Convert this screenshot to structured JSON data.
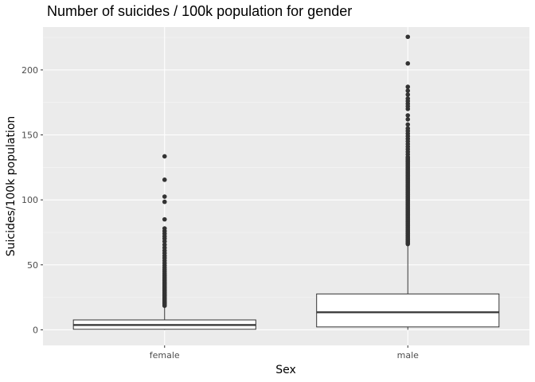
{
  "chart_data": {
    "type": "boxplot",
    "title": "Number of suicides / 100k population for gender",
    "xlabel": "Sex",
    "ylabel": "Suicides/100k population",
    "ylim": [
      -12,
      233
    ],
    "yticks": [
      0,
      50,
      100,
      150,
      200
    ],
    "grid": true,
    "colors": {
      "panel": "#ebebeb",
      "grid_major": "#ffffff",
      "grid_minor": "#f5f5f5",
      "box_fill": "#ffffff",
      "box_line": "#333333",
      "outlier": "#333333",
      "tick_text": "#4d4d4d"
    },
    "categories": [
      "female",
      "male"
    ],
    "boxes": [
      {
        "category": "female",
        "whisker_low": 0,
        "q1": 0.4,
        "median": 3.7,
        "q3": 7.6,
        "whisker_high": 18.2,
        "outliers": [
          18.5,
          19.2,
          20.0,
          20.8,
          21.5,
          22.3,
          23.0,
          23.8,
          24.6,
          25.4,
          26.2,
          27.1,
          28.0,
          28.9,
          29.8,
          30.7,
          31.6,
          32.6,
          33.6,
          34.6,
          35.7,
          36.8,
          38.0,
          39.2,
          40.5,
          41.8,
          43.2,
          44.7,
          46.2,
          47.8,
          49.5,
          51.3,
          53.2,
          55.2,
          57.0,
          59.0,
          61.0,
          63.2,
          65.5,
          68.0,
          70.2,
          72.0,
          74.0,
          76.0,
          78.0,
          85.0,
          98.5,
          102.5,
          115.5,
          133.5
        ]
      },
      {
        "category": "male",
        "whisker_low": 0,
        "q1": 2.2,
        "median": 13.5,
        "q3": 27.6,
        "whisker_high": 65.5,
        "outliers": [
          66,
          67,
          68,
          69,
          70,
          71,
          72,
          73,
          74,
          75,
          76,
          77,
          78,
          79,
          80,
          81,
          82,
          83,
          84,
          85,
          86,
          87,
          88,
          89,
          90,
          91,
          92,
          93,
          94,
          95,
          96,
          97,
          98,
          99,
          100,
          101,
          102,
          103,
          104,
          105,
          106,
          107,
          108,
          109,
          110,
          111,
          112,
          113,
          114,
          115,
          116,
          117,
          118,
          119,
          120,
          121,
          122,
          123,
          124,
          125,
          126,
          127,
          128,
          129,
          130,
          131,
          132,
          133,
          135,
          137,
          139,
          141,
          143,
          145,
          147,
          149,
          151,
          153,
          155,
          158,
          162,
          165,
          170,
          172,
          174,
          176,
          178,
          181,
          184,
          187,
          205,
          225.5
        ]
      }
    ]
  }
}
